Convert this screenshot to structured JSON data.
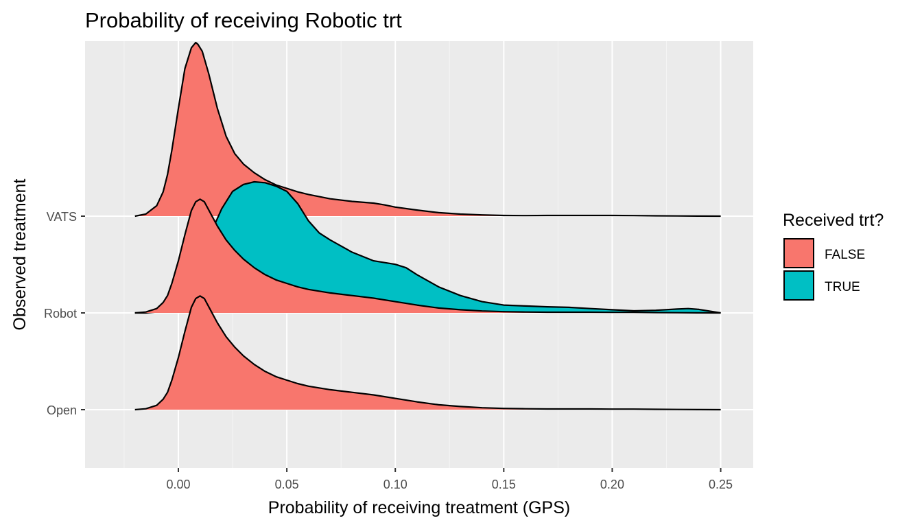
{
  "chart_data": {
    "type": "area",
    "subtype": "ridgeline-density",
    "title": "Probability of receiving Robotic trt",
    "xlabel": "Probability of receiving treatment (GPS)",
    "ylabel": "Observed treatment",
    "xlim": [
      -0.043,
      0.265
    ],
    "x_ticks": [
      0.0,
      0.05,
      0.1,
      0.15,
      0.2,
      0.25
    ],
    "x_tick_labels": [
      "0.00",
      "0.05",
      "0.10",
      "0.15",
      "0.20",
      "0.25"
    ],
    "categories": [
      "Open",
      "Robot",
      "VATS"
    ],
    "legend": {
      "title": "Received trt?",
      "position": "right",
      "entries": [
        {
          "label": "FALSE",
          "color": "#F8766D"
        },
        {
          "label": "TRUE",
          "color": "#00BFC4"
        }
      ]
    },
    "grid": true,
    "series": [
      {
        "category": "VATS",
        "received": "FALSE",
        "color": "#F8766D",
        "x": [
          -0.02,
          -0.015,
          -0.01,
          -0.007,
          -0.005,
          -0.003,
          0.0,
          0.003,
          0.006,
          0.008,
          0.009,
          0.011,
          0.014,
          0.018,
          0.022,
          0.026,
          0.03,
          0.035,
          0.04,
          0.045,
          0.05,
          0.055,
          0.06,
          0.07,
          0.08,
          0.09,
          0.095,
          0.1,
          0.11,
          0.12,
          0.13,
          0.14,
          0.15,
          0.16,
          0.17,
          0.18,
          0.19,
          0.2,
          0.21,
          0.22,
          0.23,
          0.24,
          0.25
        ],
        "density": [
          0.0,
          0.012,
          0.06,
          0.14,
          0.24,
          0.38,
          0.62,
          0.85,
          0.97,
          1.0,
          0.99,
          0.95,
          0.82,
          0.62,
          0.46,
          0.36,
          0.3,
          0.25,
          0.21,
          0.18,
          0.16,
          0.14,
          0.125,
          0.1,
          0.085,
          0.075,
          0.065,
          0.052,
          0.035,
          0.02,
          0.012,
          0.007,
          0.004,
          0.003,
          0.004,
          0.004,
          0.004,
          0.004,
          0.003,
          0.002,
          0.001,
          0.0005,
          0.0
        ]
      },
      {
        "category": "Robot",
        "received": "TRUE",
        "color": "#00BFC4",
        "x": [
          -0.02,
          -0.015,
          -0.01,
          -0.005,
          0.0,
          0.005,
          0.01,
          0.015,
          0.02,
          0.025,
          0.03,
          0.035,
          0.04,
          0.045,
          0.05,
          0.055,
          0.06,
          0.065,
          0.07,
          0.08,
          0.09,
          0.1,
          0.105,
          0.11,
          0.12,
          0.13,
          0.14,
          0.15,
          0.16,
          0.17,
          0.18,
          0.19,
          0.2,
          0.21,
          0.22,
          0.23,
          0.235,
          0.24,
          0.245,
          0.25
        ],
        "density": [
          0.0,
          0.0,
          0.005,
          0.02,
          0.07,
          0.17,
          0.31,
          0.46,
          0.6,
          0.7,
          0.74,
          0.755,
          0.75,
          0.73,
          0.7,
          0.63,
          0.53,
          0.46,
          0.42,
          0.35,
          0.3,
          0.28,
          0.26,
          0.22,
          0.15,
          0.1,
          0.065,
          0.045,
          0.04,
          0.035,
          0.032,
          0.025,
          0.018,
          0.012,
          0.015,
          0.022,
          0.025,
          0.02,
          0.01,
          0.0
        ]
      },
      {
        "category": "Robot",
        "received": "FALSE",
        "color": "#F8766D",
        "x": [
          -0.02,
          -0.015,
          -0.01,
          -0.007,
          -0.005,
          -0.003,
          0.0,
          0.003,
          0.006,
          0.008,
          0.01,
          0.012,
          0.015,
          0.018,
          0.022,
          0.026,
          0.03,
          0.035,
          0.04,
          0.045,
          0.05,
          0.055,
          0.06,
          0.07,
          0.08,
          0.09,
          0.1,
          0.11,
          0.12,
          0.13,
          0.14,
          0.15,
          0.16,
          0.17,
          0.18,
          0.19,
          0.2,
          0.21,
          0.22,
          0.23,
          0.24,
          0.25
        ],
        "density": [
          0.0,
          0.005,
          0.025,
          0.06,
          0.1,
          0.17,
          0.3,
          0.45,
          0.59,
          0.64,
          0.655,
          0.64,
          0.57,
          0.5,
          0.42,
          0.36,
          0.31,
          0.26,
          0.22,
          0.19,
          0.17,
          0.15,
          0.135,
          0.115,
          0.1,
          0.085,
          0.065,
          0.045,
          0.028,
          0.018,
          0.011,
          0.007,
          0.005,
          0.004,
          0.004,
          0.004,
          0.003,
          0.003,
          0.002,
          0.001,
          0.0005,
          0.0
        ]
      },
      {
        "category": "Open",
        "received": "FALSE",
        "color": "#F8766D",
        "x": [
          -0.02,
          -0.015,
          -0.01,
          -0.007,
          -0.005,
          -0.003,
          0.0,
          0.003,
          0.006,
          0.008,
          0.01,
          0.012,
          0.015,
          0.018,
          0.022,
          0.026,
          0.03,
          0.035,
          0.04,
          0.045,
          0.05,
          0.055,
          0.06,
          0.07,
          0.08,
          0.09,
          0.1,
          0.11,
          0.12,
          0.13,
          0.14,
          0.15,
          0.16,
          0.17,
          0.18,
          0.19,
          0.2,
          0.21,
          0.22,
          0.23,
          0.24,
          0.25
        ],
        "density": [
          0.0,
          0.005,
          0.025,
          0.06,
          0.1,
          0.17,
          0.3,
          0.45,
          0.59,
          0.64,
          0.655,
          0.64,
          0.57,
          0.5,
          0.42,
          0.36,
          0.31,
          0.26,
          0.22,
          0.19,
          0.17,
          0.15,
          0.135,
          0.115,
          0.1,
          0.085,
          0.065,
          0.045,
          0.028,
          0.018,
          0.011,
          0.007,
          0.005,
          0.004,
          0.004,
          0.004,
          0.003,
          0.003,
          0.002,
          0.001,
          0.0005,
          0.0
        ]
      }
    ]
  }
}
